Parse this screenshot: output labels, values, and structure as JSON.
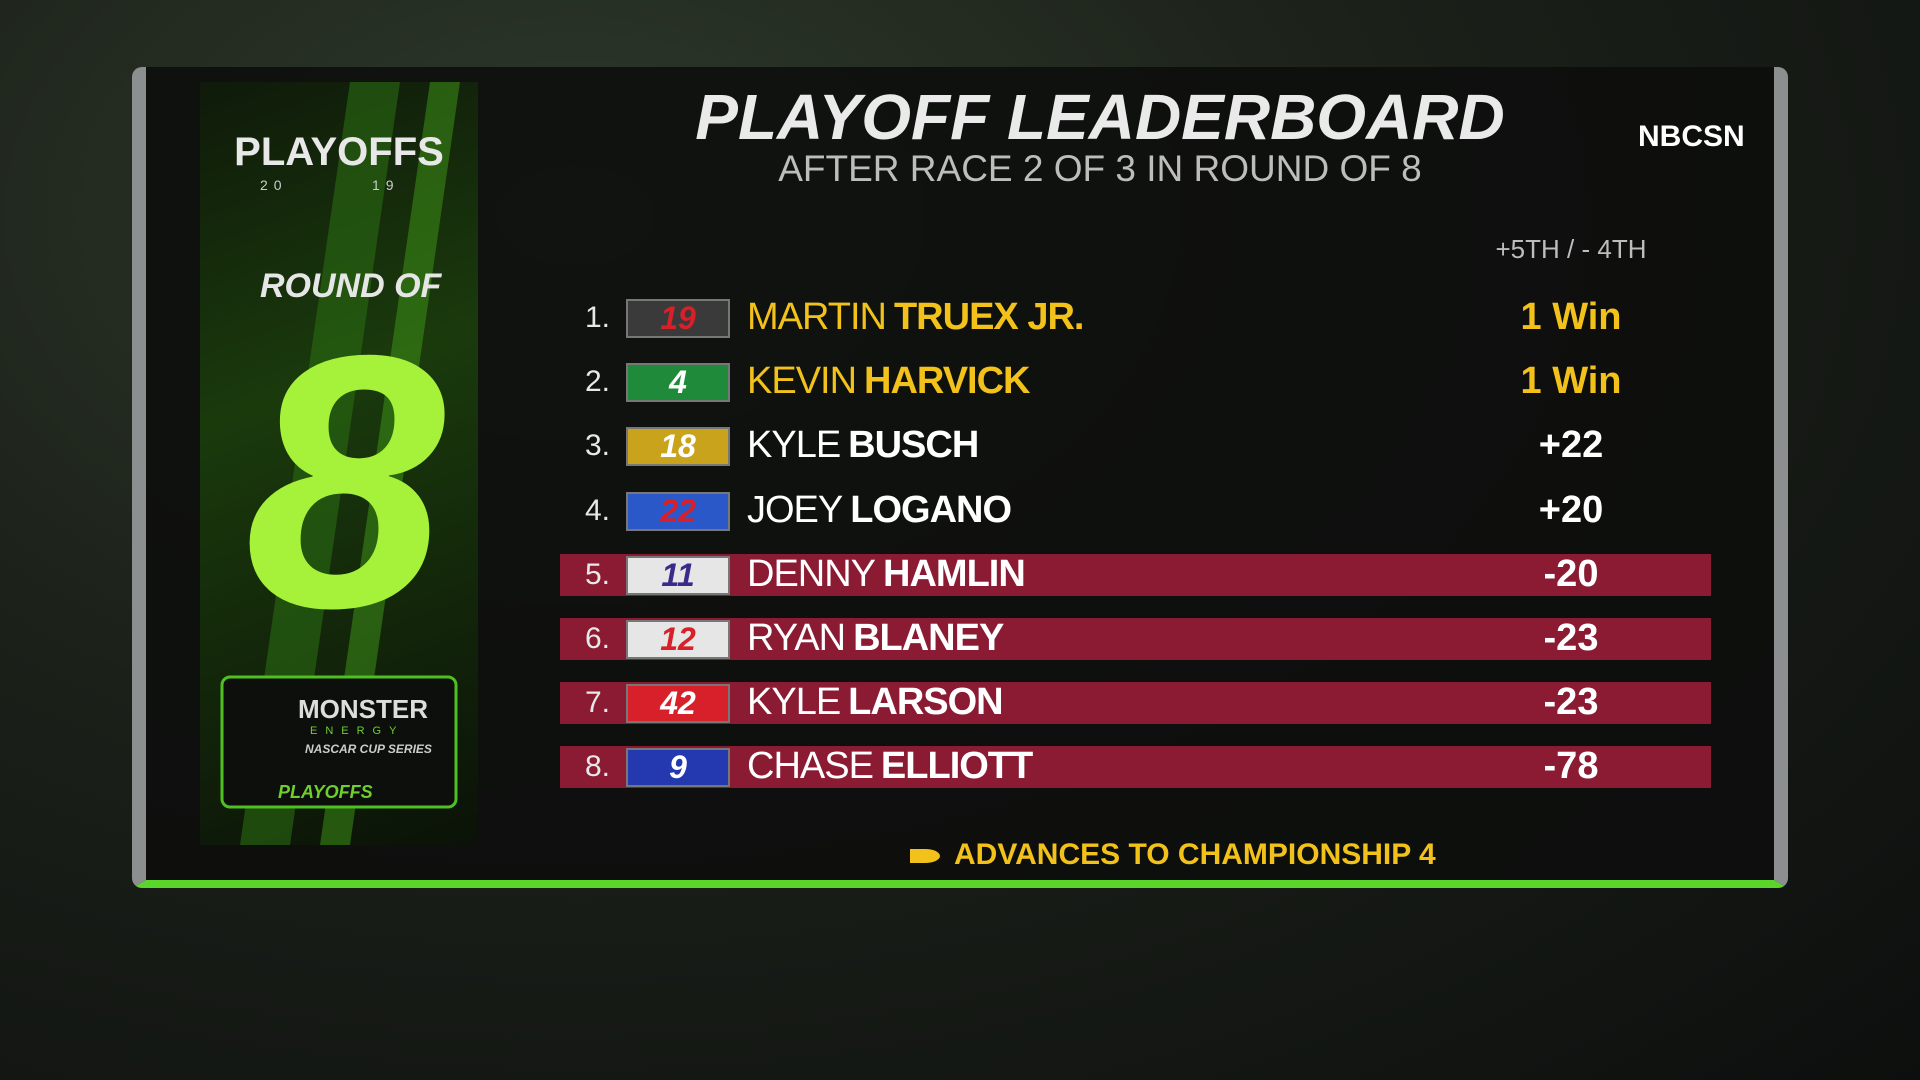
{
  "header": {
    "title": "PLAYOFF LEADERBOARD",
    "subtitle": "AFTER RACE 2 OF 3 IN ROUND OF 8"
  },
  "network_logo": "NBCSN",
  "side_panel": {
    "brand": "PLAYOFFS",
    "year_left": "20",
    "year_right": "19",
    "round_label": "ROUND OF",
    "round_number": "8",
    "sponsor": "MONSTER",
    "sponsor_sub": "ENERGY",
    "series": "NASCAR CUP SERIES",
    "badge": "PLAYOFFS"
  },
  "table": {
    "column_header": "+5TH / - 4TH",
    "rows": [
      {
        "position": "1.",
        "car_number": "19",
        "first_name": "MARTIN",
        "last_name": "TRUEX JR.",
        "status": "1 Win",
        "car_color": "#3a3a3a",
        "number_color": "#d8202a",
        "text_color": "#f2c21b",
        "highlight": false
      },
      {
        "position": "2.",
        "car_number": "4",
        "first_name": "KEVIN",
        "last_name": "HARVICK",
        "status": "1 Win",
        "car_color": "#1e8a3a",
        "number_color": "#ffffff",
        "text_color": "#f2c21b",
        "highlight": false
      },
      {
        "position": "3.",
        "car_number": "18",
        "first_name": "KYLE",
        "last_name": "BUSCH",
        "status": "+22",
        "car_color": "#c9a31c",
        "number_color": "#ffffff",
        "text_color": "#ffffff",
        "highlight": false
      },
      {
        "position": "4.",
        "car_number": "22",
        "first_name": "JOEY",
        "last_name": "LOGANO",
        "status": "+20",
        "car_color": "#2a58c8",
        "number_color": "#d8202a",
        "text_color": "#ffffff",
        "highlight": false
      },
      {
        "position": "5.",
        "car_number": "11",
        "first_name": "DENNY",
        "last_name": "HAMLIN",
        "status": "-20",
        "car_color": "#e6e6e6",
        "number_color": "#3b2a8a",
        "text_color": "#ffffff",
        "highlight": true
      },
      {
        "position": "6.",
        "car_number": "12",
        "first_name": "RYAN",
        "last_name": "BLANEY",
        "status": "-23",
        "car_color": "#e6e6e6",
        "number_color": "#d8202a",
        "text_color": "#ffffff",
        "highlight": true
      },
      {
        "position": "7.",
        "car_number": "42",
        "first_name": "KYLE",
        "last_name": "LARSON",
        "status": "-23",
        "car_color": "#d8202a",
        "number_color": "#ffffff",
        "text_color": "#ffffff",
        "highlight": true
      },
      {
        "position": "8.",
        "car_number": "9",
        "first_name": "CHASE",
        "last_name": "ELLIOTT",
        "status": "-78",
        "car_color": "#2438b0",
        "number_color": "#ffffff",
        "text_color": "#ffffff",
        "highlight": true
      }
    ]
  },
  "footer": {
    "legend": "ADVANCES TO CHAMPIONSHIP 4",
    "legend_color": "#f2c21b"
  }
}
